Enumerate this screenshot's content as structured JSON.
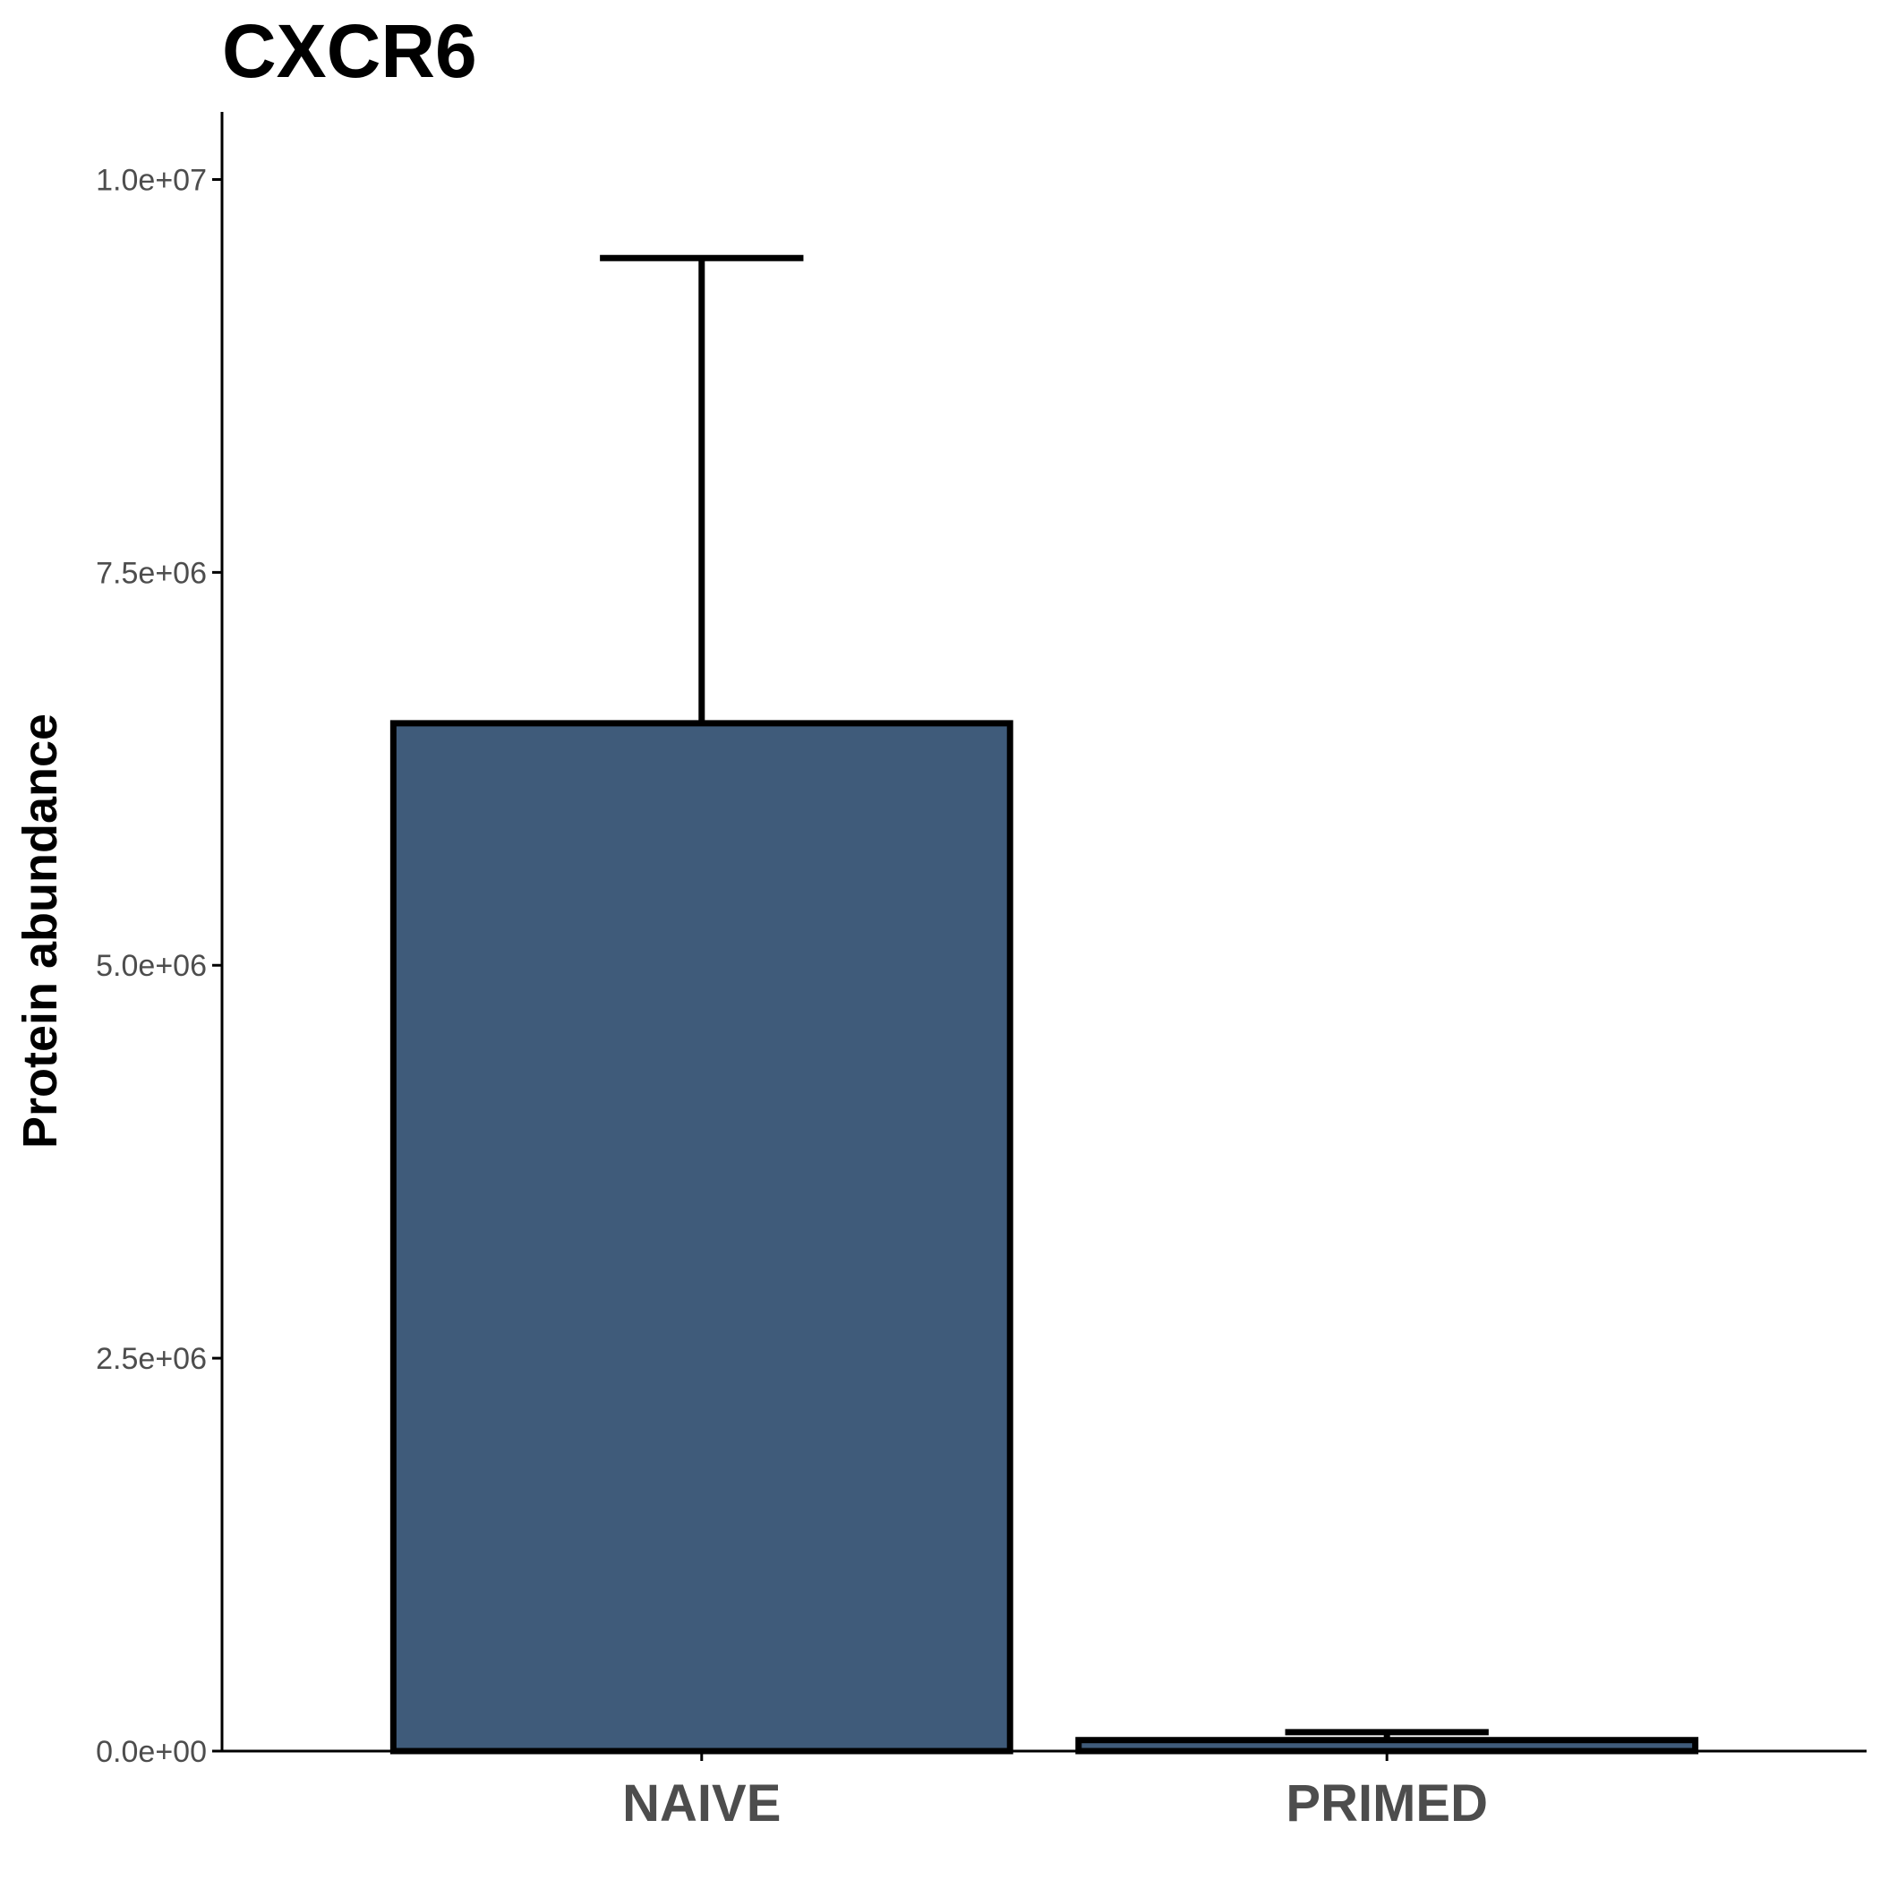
{
  "chart_data": {
    "type": "bar",
    "title": "CXCR6",
    "xlabel": "",
    "ylabel": "Protein abundance",
    "categories": [
      "NAIVE",
      "PRIMED"
    ],
    "values": [
      6540000,
      70000
    ],
    "error_upper": [
      9500000,
      120000
    ],
    "ylim": [
      0,
      10430000
    ],
    "yticks": [
      0,
      2500000,
      5000000,
      7500000,
      10000000
    ],
    "ytick_labels": [
      "0.0e+00",
      "2.5e+06",
      "5.0e+06",
      "7.5e+06",
      "1.0e+07"
    ],
    "colors": {
      "bar_fill": "#3f5b7a",
      "bar_outline": "#000000",
      "axis": "#000000"
    },
    "grid": false,
    "legend": "none"
  }
}
